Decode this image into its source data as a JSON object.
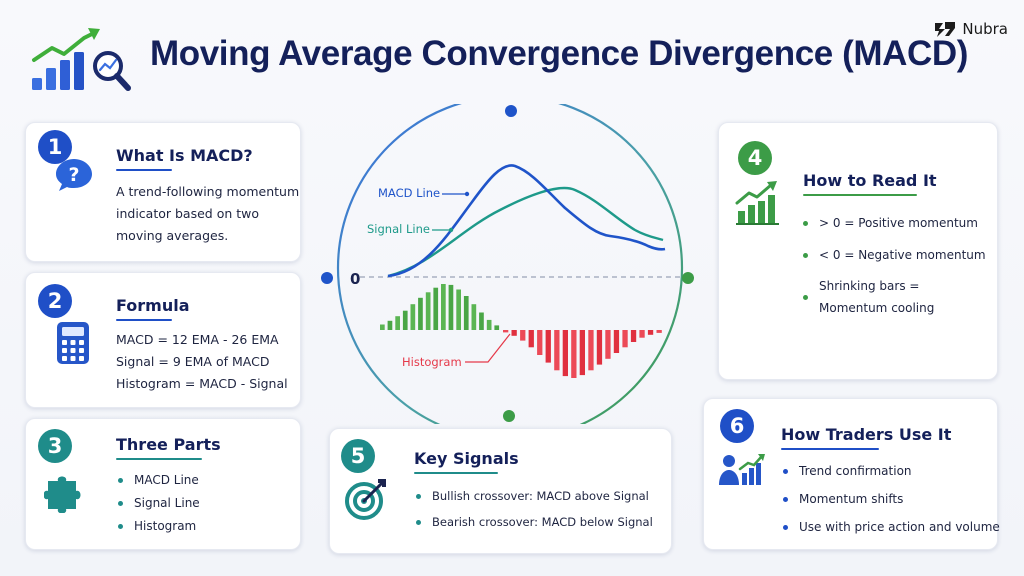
{
  "title": "Moving Average Convergence Divergence (MACD)",
  "brand": {
    "name": "Nubra"
  },
  "icons": {
    "header": "growth-chart-magnifier-icon",
    "brand": "nubra-logo-icon",
    "card1": "question-chat-bubble-icon",
    "card2": "calculator-icon",
    "card3": "puzzle-piece-icon",
    "card4": "bar-chart-up-arrow-icon",
    "card5": "target-arrow-icon",
    "card6": "trader-chart-icon"
  },
  "colors": {
    "navy": "#14205a",
    "blue": "#1f54c9",
    "teal": "#1e9a8a",
    "green": "#3c9c47",
    "red": "#e53a4a",
    "teal_badge": "#1f8c8a"
  },
  "cards": {
    "what": {
      "number": "1",
      "title": "What Is MACD?",
      "lines": [
        "A trend-following momentum",
        "indicator based on two",
        "moving averages."
      ]
    },
    "formula": {
      "number": "2",
      "title": "Formula",
      "lines": [
        "MACD = 12 EMA - 26 EMA",
        "Signal = 9 EMA of MACD",
        "Histogram = MACD - Signal"
      ]
    },
    "parts": {
      "number": "3",
      "title": "Three Parts",
      "items": [
        "MACD Line",
        "Signal Line",
        "Histogram"
      ]
    },
    "read": {
      "number": "4",
      "title": "How to Read It",
      "items": [
        "> 0 = Positive momentum",
        "< 0 = Negative momentum"
      ],
      "multi": [
        "Shrinking bars =",
        "Momentum cooling"
      ]
    },
    "signals": {
      "number": "5",
      "title": "Key Signals",
      "items": [
        "Bullish crossover: MACD above Signal",
        "Bearish crossover: MACD below Signal"
      ]
    },
    "traders": {
      "number": "6",
      "title": "How Traders Use It",
      "items": [
        "Trend confirmation",
        "Momentum shifts",
        "Use with price action and volume"
      ]
    }
  },
  "diagram": {
    "macd_label": "MACD Line",
    "signal_label": "Signal Line",
    "histogram_label": "Histogram",
    "zero_label": "0",
    "histogram": {
      "positive": [
        0.12,
        0.2,
        0.3,
        0.42,
        0.56,
        0.7,
        0.82,
        0.92,
        1.0,
        0.98,
        0.88,
        0.74,
        0.56,
        0.38,
        0.22,
        0.1
      ],
      "negative": [
        0.05,
        0.12,
        0.22,
        0.36,
        0.52,
        0.68,
        0.84,
        0.96,
        1.0,
        0.94,
        0.84,
        0.72,
        0.6,
        0.48,
        0.36,
        0.25,
        0.16,
        0.1,
        0.06
      ]
    }
  }
}
